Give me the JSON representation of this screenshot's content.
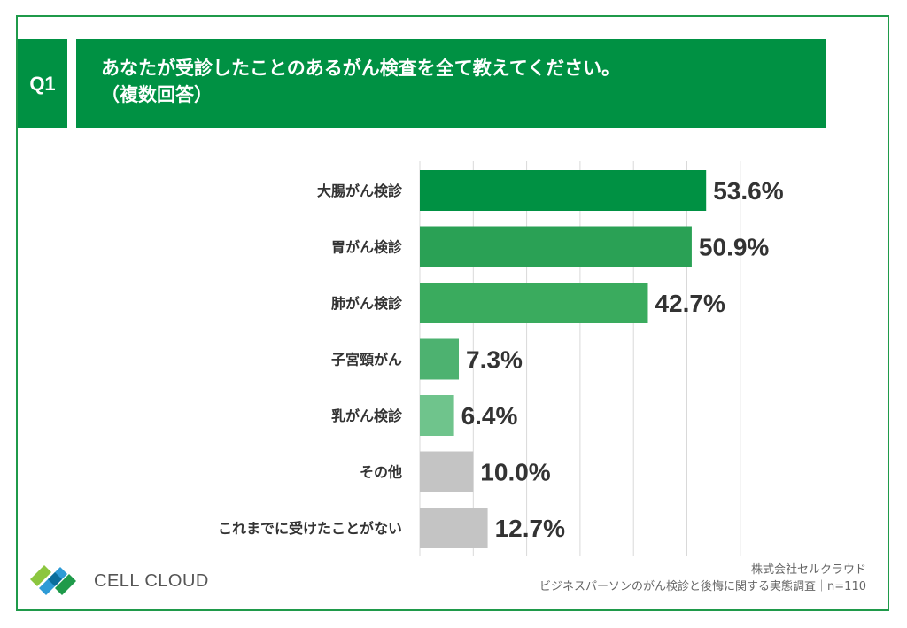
{
  "question": {
    "badge": "Q1",
    "line1": "あなたが受診したことのあるがん検査を全て教えてください。",
    "line2": "（複数回答）"
  },
  "chart_data": {
    "type": "bar",
    "orientation": "horizontal",
    "categories": [
      "大腸がん検診",
      "胃がん検診",
      "肺がん検診",
      "子宮頸がん",
      "乳がん検診",
      "その他",
      "これまでに受けたことがない"
    ],
    "values": [
      53.6,
      50.9,
      42.7,
      7.3,
      6.4,
      10.0,
      12.7
    ],
    "value_labels": [
      "53.6%",
      "50.9%",
      "42.7%",
      "7.3%",
      "6.4%",
      "10.0%",
      "12.7%"
    ],
    "colors": [
      "#009143",
      "#2aa155",
      "#3aab5e",
      "#4db270",
      "#6fc48c",
      "#c4c4c4",
      "#c4c4c4"
    ],
    "xlim": [
      0,
      60
    ],
    "grid": true,
    "unit": "%"
  },
  "brand": {
    "name": "CELL CLOUD"
  },
  "source": {
    "line1": "株式会社セルクラウド",
    "line2": "ビジネスパーソンのがん検診と後悔に関する実態調査｜n=110"
  }
}
